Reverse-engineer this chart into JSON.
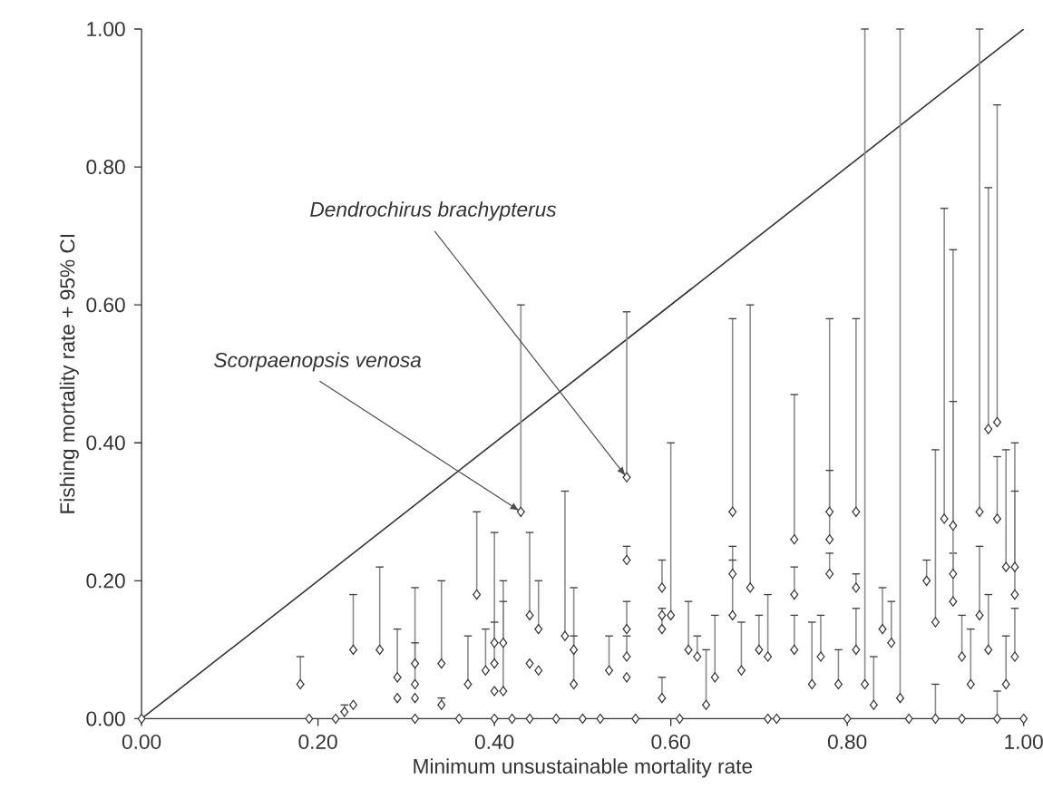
{
  "chart_data": {
    "type": "scatter",
    "xlabel": "Minimum unsustainable mortality rate",
    "ylabel": "Fishing mortality rate + 95% CI",
    "xlim": [
      0,
      1
    ],
    "ylim": [
      0,
      1
    ],
    "xticks": [
      {
        "value": 0,
        "label": "0.00"
      },
      {
        "value": 0.2,
        "label": "0.20"
      },
      {
        "value": 0.4,
        "label": "0.40"
      },
      {
        "value": 0.6,
        "label": "0.60"
      },
      {
        "value": 0.8,
        "label": "0.80"
      },
      {
        "value": 1,
        "label": "1.00"
      }
    ],
    "yticks": [
      {
        "value": 0,
        "label": "0.00"
      },
      {
        "value": 0.2,
        "label": "0.20"
      },
      {
        "value": 0.4,
        "label": "0.40"
      },
      {
        "value": 0.6,
        "label": "0.60"
      },
      {
        "value": 0.8,
        "label": "0.80"
      },
      {
        "value": 1,
        "label": "1.00"
      }
    ],
    "annotations": [
      {
        "text": "Dendrochirus brachypterus",
        "x": 0.55,
        "y": 0.35
      },
      {
        "text": "Scorpaenopsis venosa",
        "x": 0.43,
        "y": 0.3
      }
    ],
    "series": [
      {
        "type": "line",
        "x": [
          0,
          1
        ],
        "values": [
          0,
          1
        ],
        "color": "#333333",
        "marker": "none"
      },
      {
        "color": "#333333",
        "marker": "diamond",
        "x": [
          0,
          0.18,
          0.19,
          0.22,
          0.23,
          0.24,
          0.24,
          0.27,
          0.29,
          0.29,
          0.31,
          0.31,
          0.31,
          0.31,
          0.34,
          0.34,
          0.36,
          0.37,
          0.38,
          0.39,
          0.4,
          0.4,
          0.4,
          0.4,
          0.41,
          0.41,
          0.42,
          0.43,
          0.44,
          0.44,
          0.45,
          0.45,
          0.44,
          0.47,
          0.48,
          0.49,
          0.49,
          0.5,
          0.53,
          0.52,
          0.55,
          0.55,
          0.55,
          0.55,
          0.55,
          0.56,
          0.59,
          0.59,
          0.59,
          0.59,
          0.6,
          0.61,
          0.62,
          0.63,
          0.64,
          0.65,
          0.67,
          0.67,
          0.67,
          0.68,
          0.69,
          0.7,
          0.71,
          0.71,
          0.72,
          0.74,
          0.74,
          0.74,
          0.76,
          0.77,
          0.78,
          0.78,
          0.78,
          0.79,
          0.8,
          0.81,
          0.81,
          0.81,
          0.82,
          0.83,
          0.84,
          0.85,
          0.86,
          0.87,
          0.89,
          0.9,
          0.91,
          0.92,
          0.92,
          0.92,
          0.93,
          0.94,
          0.95,
          0.95,
          0.96,
          0.97,
          0.97,
          0.98,
          0.99,
          0.99,
          0.96,
          0.97,
          0.98,
          1.0,
          0.9,
          0.93,
          0.99
        ],
        "values": [
          0,
          0.05,
          0,
          0,
          0.01,
          0.02,
          0.1,
          0.1,
          0.06,
          0.03,
          0.08,
          0.05,
          0.03,
          0,
          0.08,
          0.02,
          0,
          0.05,
          0.18,
          0.07,
          0.11,
          0.08,
          0.04,
          0,
          0.11,
          0.04,
          0,
          0.3,
          0.15,
          0.08,
          0.13,
          0.07,
          0,
          0,
          0.12,
          0.1,
          0.05,
          0,
          0.07,
          0,
          0.35,
          0.23,
          0.13,
          0.09,
          0.06,
          0,
          0.19,
          0.15,
          0.13,
          0.03,
          0.15,
          0,
          0.1,
          0.09,
          0.02,
          0.06,
          0.3,
          0.21,
          0.15,
          0.07,
          0.19,
          0.1,
          0.09,
          0,
          0,
          0.26,
          0.18,
          0.1,
          0.05,
          0.09,
          0.3,
          0.26,
          0.21,
          0.05,
          0,
          0.3,
          0.19,
          0.1,
          0.05,
          0.02,
          0.13,
          0.11,
          0.03,
          0,
          0.2,
          0.14,
          0.29,
          0.28,
          0.21,
          0.17,
          0.09,
          0.05,
          0.3,
          0.15,
          0.42,
          0.43,
          0.29,
          0.22,
          0.18,
          0.22,
          0.1,
          0,
          0.05,
          0,
          0,
          0,
          0.09
        ],
        "errors": [
          null,
          [
            0.05,
            0.09
          ],
          null,
          null,
          [
            0.01,
            0.02
          ],
          null,
          [
            0.1,
            0.18
          ],
          [
            0.1,
            0.22
          ],
          [
            0.06,
            0.13
          ],
          null,
          [
            0.08,
            0.19
          ],
          [
            0.05,
            0.11
          ],
          null,
          null,
          [
            0.08,
            0.2
          ],
          [
            0.02,
            0.03
          ],
          null,
          [
            0.05,
            0.12
          ],
          [
            0.18,
            0.3
          ],
          [
            0.07,
            0.13
          ],
          [
            0.11,
            0.27
          ],
          [
            0.08,
            0.14
          ],
          null,
          null,
          [
            0.11,
            0.2
          ],
          [
            0.04,
            0.17
          ],
          null,
          [
            0.3,
            0.6
          ],
          [
            0.15,
            0.27
          ],
          null,
          [
            0.13,
            0.2
          ],
          null,
          null,
          null,
          [
            0.12,
            0.33
          ],
          [
            0.1,
            0.19
          ],
          [
            0.05,
            0.12
          ],
          null,
          [
            0.07,
            0.12
          ],
          null,
          [
            0.35,
            0.59
          ],
          [
            0.23,
            0.25
          ],
          [
            0.13,
            0.17
          ],
          [
            0.09,
            0.12
          ],
          null,
          null,
          [
            0.19,
            0.23
          ],
          null,
          [
            0.13,
            0.16
          ],
          [
            0.03,
            0.06
          ],
          [
            0.15,
            0.4
          ],
          null,
          [
            0.1,
            0.17
          ],
          [
            0.09,
            0.12
          ],
          [
            0.02,
            0.1
          ],
          [
            0.06,
            0.15
          ],
          [
            0.3,
            0.58
          ],
          [
            0.21,
            0.25
          ],
          [
            0.15,
            0.23
          ],
          [
            0.07,
            0.14
          ],
          [
            0.19,
            0.6
          ],
          [
            0.1,
            0.15
          ],
          [
            0.09,
            0.18
          ],
          null,
          null,
          [
            0.26,
            0.47
          ],
          [
            0.18,
            0.22
          ],
          [
            0.1,
            0.15
          ],
          [
            0.05,
            0.14
          ],
          [
            0.09,
            0.15
          ],
          [
            0.3,
            0.58
          ],
          [
            0.26,
            0.36
          ],
          [
            0.21,
            0.24
          ],
          [
            0.05,
            0.1
          ],
          null,
          [
            0.3,
            0.58
          ],
          [
            0.19,
            0.21
          ],
          [
            0.1,
            0.16
          ],
          [
            0.05,
            1.0
          ],
          [
            0.02,
            0.09
          ],
          [
            0.13,
            0.19
          ],
          [
            0.11,
            0.17
          ],
          [
            0.03,
            1.0
          ],
          null,
          [
            0.2,
            0.23
          ],
          [
            0.14,
            0.39
          ],
          [
            0.29,
            0.74
          ],
          [
            0.28,
            0.68
          ],
          [
            0.21,
            0.24
          ],
          [
            0.17,
            0.46
          ],
          [
            0.09,
            0.15
          ],
          [
            0.05,
            0.13
          ],
          [
            0.3,
            1.0
          ],
          [
            0.15,
            0.25
          ],
          [
            0.42,
            0.77
          ],
          [
            0.43,
            0.89
          ],
          [
            0.29,
            0.38
          ],
          [
            0.22,
            0.39
          ],
          [
            0.18,
            0.4
          ],
          [
            0.22,
            0.33
          ],
          [
            0.1,
            0.18
          ],
          [
            0,
            0.04
          ],
          [
            0.05,
            0.12
          ],
          null,
          [
            0,
            0.05
          ],
          null,
          [
            0.09,
            0.16
          ]
        ]
      }
    ]
  }
}
